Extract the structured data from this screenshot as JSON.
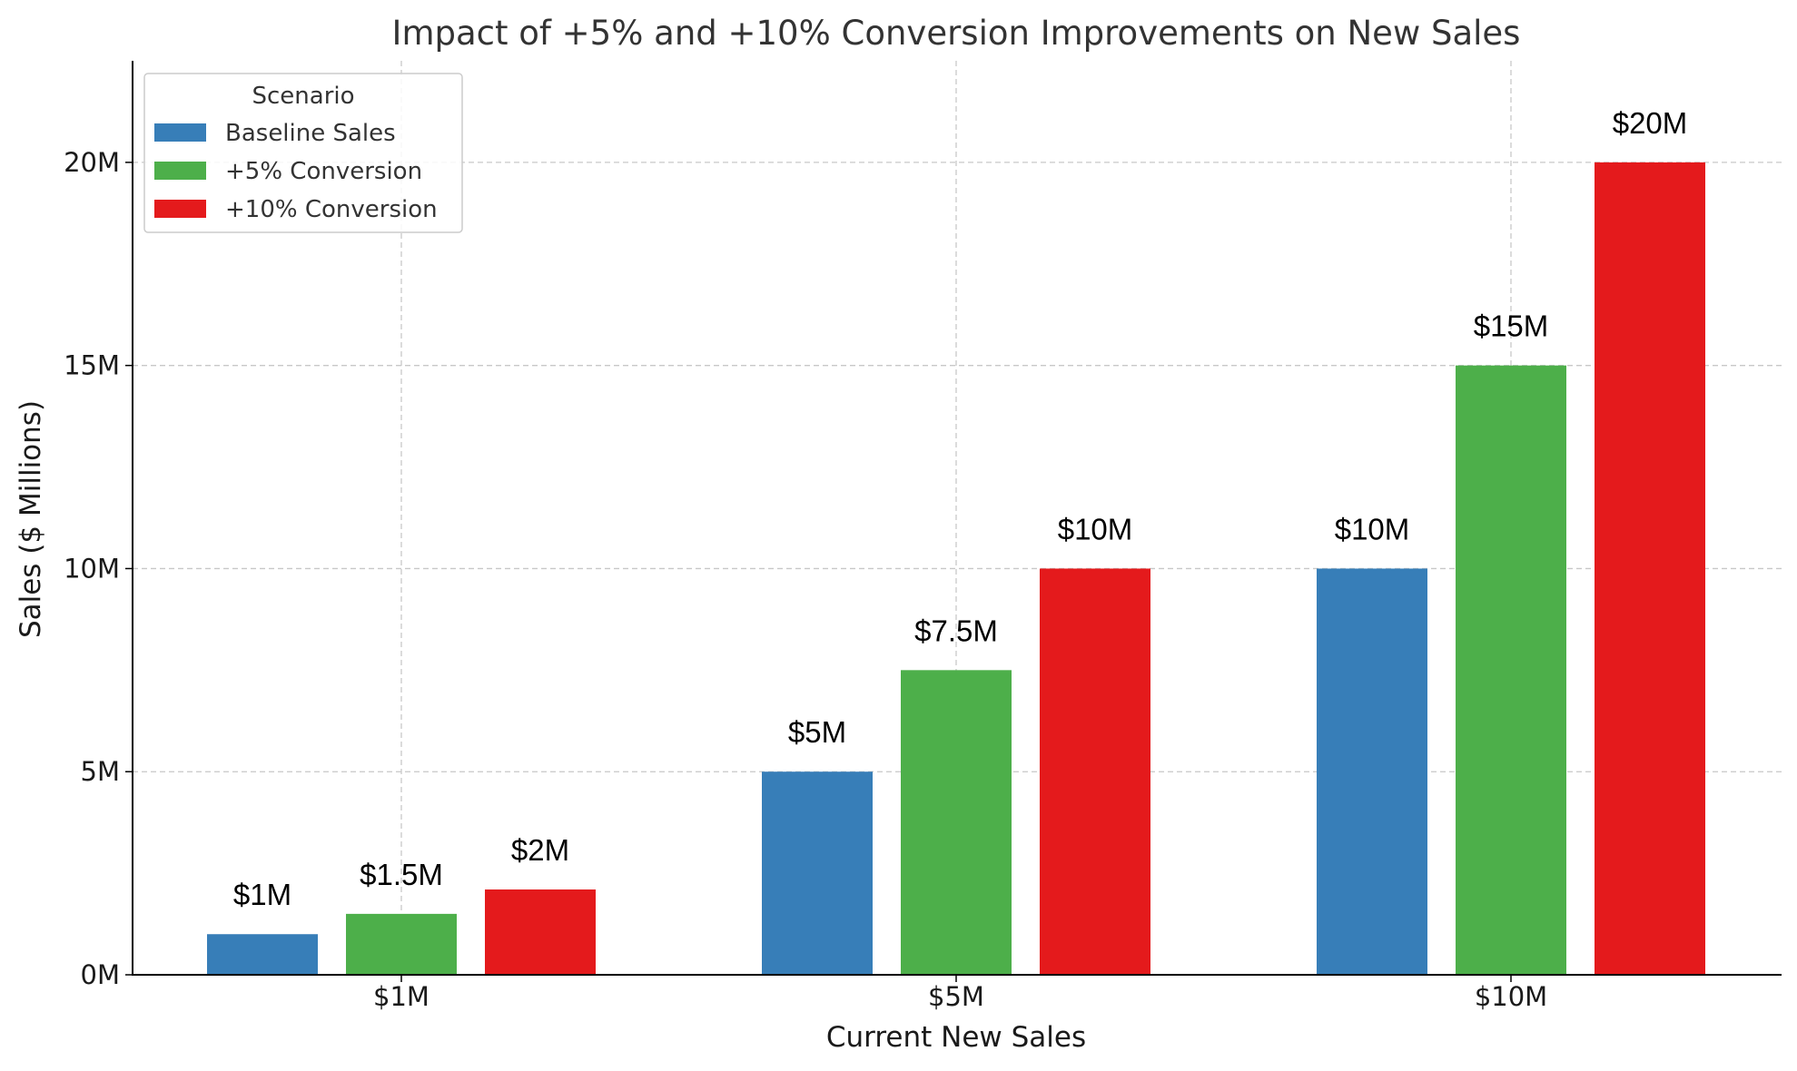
{
  "chart_data": {
    "type": "bar",
    "title": "Impact of +5% and +10% Conversion Improvements on New Sales",
    "xlabel": "Current New Sales",
    "ylabel": "Sales ($ Millions)",
    "categories": [
      "$1M",
      "$5M",
      "$10M"
    ],
    "ylim": [
      0,
      22.5
    ],
    "yticks": [
      0,
      5,
      10,
      15,
      20
    ],
    "ytick_labels": [
      "0M",
      "5M",
      "10M",
      "15M",
      "20M"
    ],
    "grid": true,
    "legend": {
      "title": "Scenario",
      "position": "top-left"
    },
    "series": [
      {
        "name": "Baseline Sales",
        "color": "#377eb8",
        "values": [
          1,
          5,
          10
        ],
        "labels": [
          "$1M",
          "$5M",
          "$10M"
        ]
      },
      {
        "name": "+5% Conversion",
        "color": "#4daf4a",
        "values": [
          1.5,
          7.5,
          15
        ],
        "labels": [
          "$1.5M",
          "$7.5M",
          "$15M"
        ]
      },
      {
        "name": "+10% Conversion",
        "color": "#e41a1c",
        "values": [
          2.1,
          10,
          20
        ],
        "labels": [
          "$2M",
          "$10M",
          "$20M"
        ]
      }
    ]
  }
}
